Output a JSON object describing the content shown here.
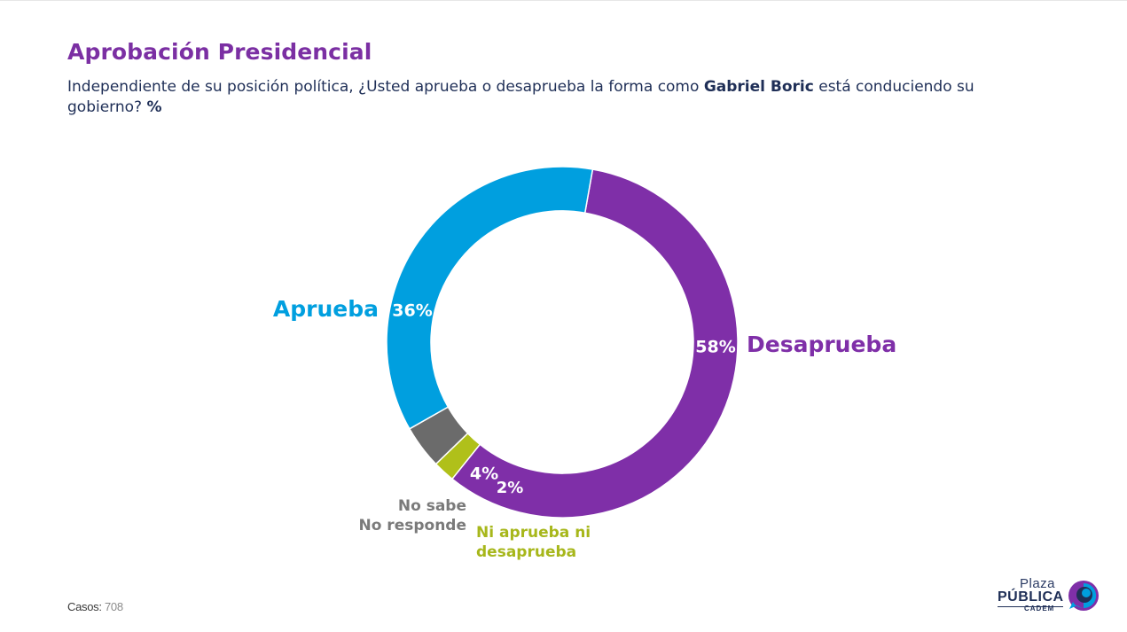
{
  "header": {
    "title": "Aprobación Presidencial",
    "subtitle_part1": "Independiente de su posición política, ¿Usted aprueba o desaprueba la forma como ",
    "subtitle_bold": "Gabriel Boric",
    "subtitle_part2": " está conduciendo su gobierno? ",
    "subtitle_unit": "%"
  },
  "chart_data": {
    "type": "pie",
    "donut": true,
    "title": "Aprobación Presidencial",
    "unit": "%",
    "series": [
      {
        "label": "Desaprueba",
        "value": 58,
        "display": "58%",
        "color": "#7f2fa8",
        "label_lines": [
          "Desaprueba"
        ]
      },
      {
        "label": "Ni aprueba ni desaprueba",
        "value": 2,
        "display": "2%",
        "color": "#b0c01a",
        "label_lines": [
          "Ni aprueba ni",
          "desaprueba"
        ]
      },
      {
        "label": "No sabe No responde",
        "value": 4,
        "display": "4%",
        "color": "#6b6b6b",
        "label_lines": [
          "No sabe",
          "No responde"
        ]
      },
      {
        "label": "Aprueba",
        "value": 36,
        "display": "36%",
        "color": "#009fdf",
        "label_lines": [
          "Aprueba"
        ]
      }
    ]
  },
  "footer": {
    "cases_label": "Casos",
    "cases_sep": ": ",
    "cases_value": "708"
  },
  "logo": {
    "line1": "Plaza",
    "line2": "PÚBLICA",
    "line3": "CADEM",
    "colors": [
      "#7f2fa8",
      "#009fdf",
      "#1f2f57"
    ]
  }
}
